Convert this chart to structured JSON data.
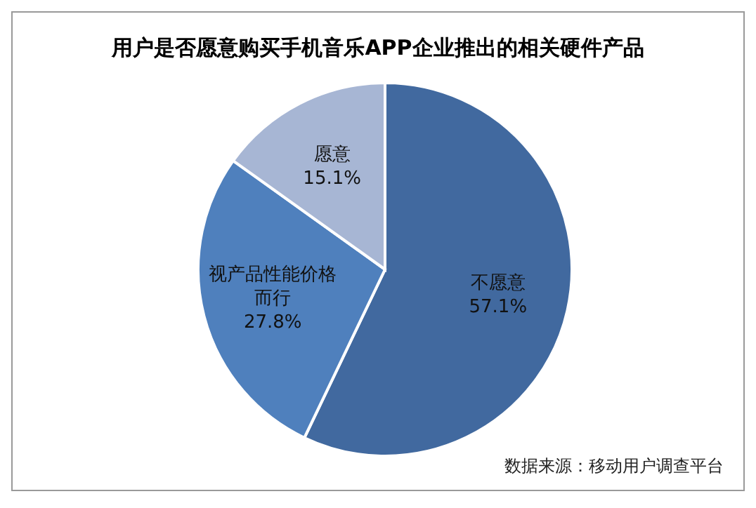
{
  "chart_data": {
    "type": "pie",
    "title": "用户是否愿意购买手机音乐APP企业推出的相关硬件产品",
    "categories": [
      "不愿意",
      "视产品性能价格而行",
      "愿意"
    ],
    "values": [
      57.1,
      27.8,
      15.1
    ],
    "value_labels": [
      "57.1%",
      "27.8%",
      "15.1%"
    ],
    "colors": [
      "#41699f",
      "#4f80bd",
      "#a7b6d4"
    ],
    "annotations": [
      "数据来源：移动用户调查平台"
    ]
  }
}
